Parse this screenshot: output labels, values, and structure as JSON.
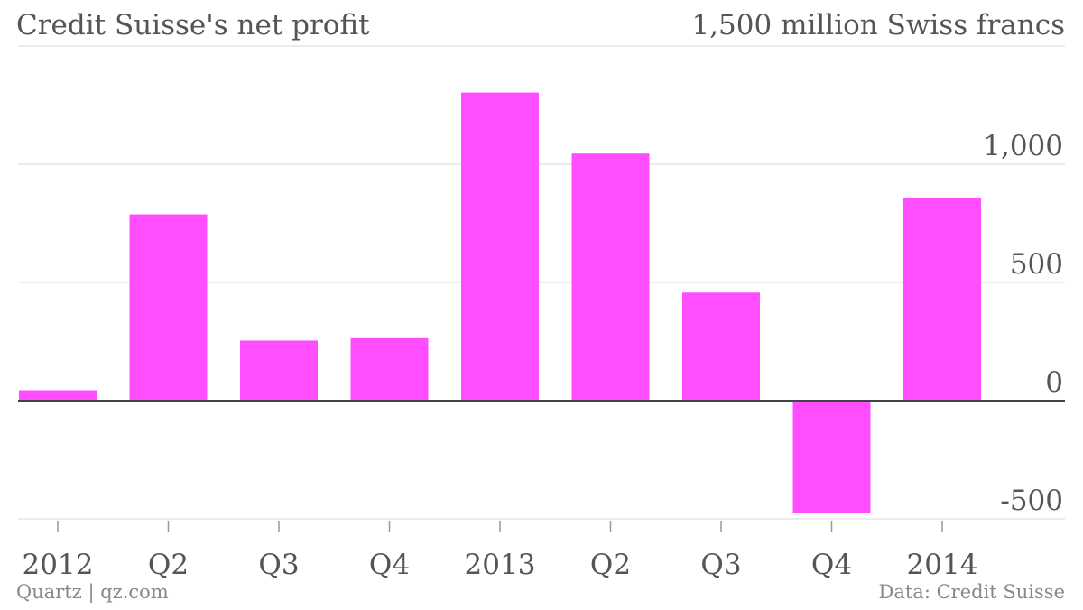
{
  "footer": {
    "credit": "Quartz | qz.com",
    "source": "Data: Credit Suisse"
  },
  "colors": {
    "bar": "#ff4dff",
    "grid": "#e6e6e6",
    "axis": "#444444"
  },
  "chart_data": {
    "type": "bar",
    "title": "Credit Suisse's net profit",
    "unit_label": "1,500 million Swiss francs",
    "categories": [
      "2012",
      "Q2",
      "Q3",
      "Q4",
      "2013",
      "Q2",
      "Q3",
      "Q4",
      "2014"
    ],
    "values": [
      44,
      788,
      254,
      264,
      1303,
      1045,
      457,
      -476,
      859
    ],
    "ylim": [
      -500,
      1500
    ],
    "yticks": [
      -500,
      0,
      500,
      1000
    ],
    "ytick_labels": [
      "-500",
      "0",
      "500",
      "1,000"
    ],
    "grid": true
  }
}
